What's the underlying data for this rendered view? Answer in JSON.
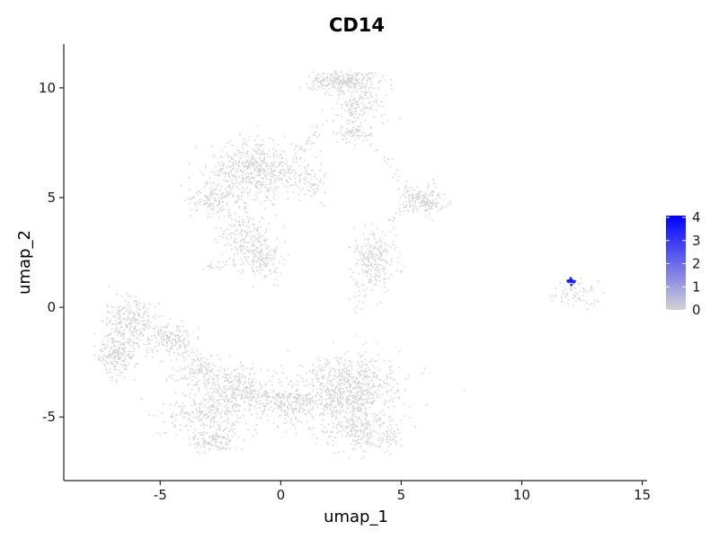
{
  "chart_data": {
    "type": "scatter",
    "title": "CD14",
    "xlabel": "umap_1",
    "ylabel": "umap_2",
    "xlim": [
      -9,
      15.2
    ],
    "ylim": [
      -7.9,
      12
    ],
    "xticks": [
      -5,
      0,
      5,
      10,
      15
    ],
    "yticks": [
      -5,
      0,
      5,
      10
    ],
    "xtick_labels": [
      "-5",
      "0",
      "5",
      "10",
      "15"
    ],
    "ytick_labels": [
      "-5",
      "0",
      "5",
      "10"
    ],
    "grid": false,
    "legend": {
      "type": "continuous-colorbar",
      "placement": "right",
      "min": 0,
      "max": 4,
      "ticks": [
        0,
        1,
        2,
        3,
        4
      ],
      "tick_labels": [
        "0",
        "1",
        "2",
        "3",
        "4"
      ],
      "low_color": "#d3d3d3",
      "high_color": "#0000ff"
    },
    "clusters": [
      {
        "center": [
          2.5,
          10.3
        ],
        "spread": [
          0.9,
          0.3
        ],
        "n": 260,
        "expr": 0
      },
      {
        "center": [
          3.3,
          9.3
        ],
        "spread": [
          0.7,
          0.7
        ],
        "n": 160,
        "expr": 0
      },
      {
        "center": [
          3.1,
          7.9
        ],
        "spread": [
          0.5,
          0.25
        ],
        "n": 70,
        "expr": 0
      },
      {
        "center": [
          -1.0,
          6.2
        ],
        "spread": [
          1.3,
          0.9
        ],
        "n": 520,
        "expr": 0
      },
      {
        "center": [
          -2.8,
          4.9
        ],
        "spread": [
          0.8,
          0.5
        ],
        "n": 150,
        "expr": 0
      },
      {
        "center": [
          -1.5,
          3.2
        ],
        "spread": [
          0.8,
          0.8
        ],
        "n": 180,
        "expr": 0
      },
      {
        "center": [
          -0.8,
          2.2
        ],
        "spread": [
          0.6,
          0.6
        ],
        "n": 120,
        "expr": 0
      },
      {
        "center": [
          1.2,
          5.8
        ],
        "spread": [
          0.6,
          0.5
        ],
        "n": 60,
        "expr": 0
      },
      {
        "center": [
          5.9,
          4.9
        ],
        "spread": [
          0.6,
          0.4
        ],
        "n": 170,
        "expr": 0
      },
      {
        "center": [
          3.9,
          2.2
        ],
        "spread": [
          0.6,
          1.0
        ],
        "n": 230,
        "expr": 0
      },
      {
        "center": [
          -6.3,
          -0.7
        ],
        "spread": [
          0.7,
          0.8
        ],
        "n": 260,
        "expr": 0
      },
      {
        "center": [
          -6.8,
          -2.2
        ],
        "spread": [
          0.5,
          0.6
        ],
        "n": 200,
        "expr": 0
      },
      {
        "center": [
          -4.6,
          -1.5
        ],
        "spread": [
          0.8,
          0.6
        ],
        "n": 150,
        "expr": 0
      },
      {
        "center": [
          -3.4,
          -3.0
        ],
        "spread": [
          0.8,
          0.5
        ],
        "n": 120,
        "expr": 0
      },
      {
        "center": [
          -1.8,
          -3.6
        ],
        "spread": [
          1.0,
          0.6
        ],
        "n": 230,
        "expr": 0
      },
      {
        "center": [
          -3.0,
          -4.9
        ],
        "spread": [
          1.1,
          0.8
        ],
        "n": 300,
        "expr": 0
      },
      {
        "center": [
          -2.8,
          -6.1
        ],
        "spread": [
          0.6,
          0.3
        ],
        "n": 100,
        "expr": 0
      },
      {
        "center": [
          0.3,
          -4.5
        ],
        "spread": [
          1.1,
          0.6
        ],
        "n": 220,
        "expr": 0
      },
      {
        "center": [
          2.8,
          -3.7
        ],
        "spread": [
          1.4,
          1.0
        ],
        "n": 700,
        "expr": 0
      },
      {
        "center": [
          3.2,
          -5.5
        ],
        "spread": [
          0.9,
          0.7
        ],
        "n": 220,
        "expr": 0
      },
      {
        "center": [
          4.6,
          -5.9
        ],
        "spread": [
          0.3,
          0.3
        ],
        "n": 25,
        "expr": 0
      },
      {
        "center": [
          12.3,
          0.8
        ],
        "spread": [
          0.6,
          0.35
        ],
        "n": 45,
        "expr": 0
      },
      {
        "center": [
          12.0,
          1.2
        ],
        "spread": [
          0.12,
          0.08
        ],
        "n": 8,
        "expr": 3.5
      }
    ],
    "bridges": [
      {
        "from": [
          0.3,
          6.2
        ],
        "to": [
          1.9,
          8.6
        ],
        "n": 40
      },
      {
        "from": [
          3.8,
          7.6
        ],
        "to": [
          5.6,
          5.0
        ],
        "n": 25
      },
      {
        "from": [
          4.4,
          3.8
        ],
        "to": [
          5.4,
          4.8
        ],
        "n": 18
      },
      {
        "from": [
          -3.2,
          1.8
        ],
        "to": [
          -0.6,
          2.2
        ],
        "n": 30
      },
      {
        "from": [
          -5.0,
          -1.0
        ],
        "to": [
          -3.0,
          -2.8
        ],
        "n": 40
      },
      {
        "from": [
          -1.3,
          -3.9
        ],
        "to": [
          1.4,
          -4.2
        ],
        "n": 60
      },
      {
        "from": [
          3.0,
          -5.4
        ],
        "to": [
          4.9,
          -6.2
        ],
        "n": 30
      },
      {
        "from": [
          11.2,
          0.5
        ],
        "to": [
          13.3,
          0.1
        ],
        "n": 25
      },
      {
        "from": [
          3.0,
          1.4
        ],
        "to": [
          3.2,
          -0.2
        ],
        "n": 12
      }
    ],
    "seed": 7
  }
}
